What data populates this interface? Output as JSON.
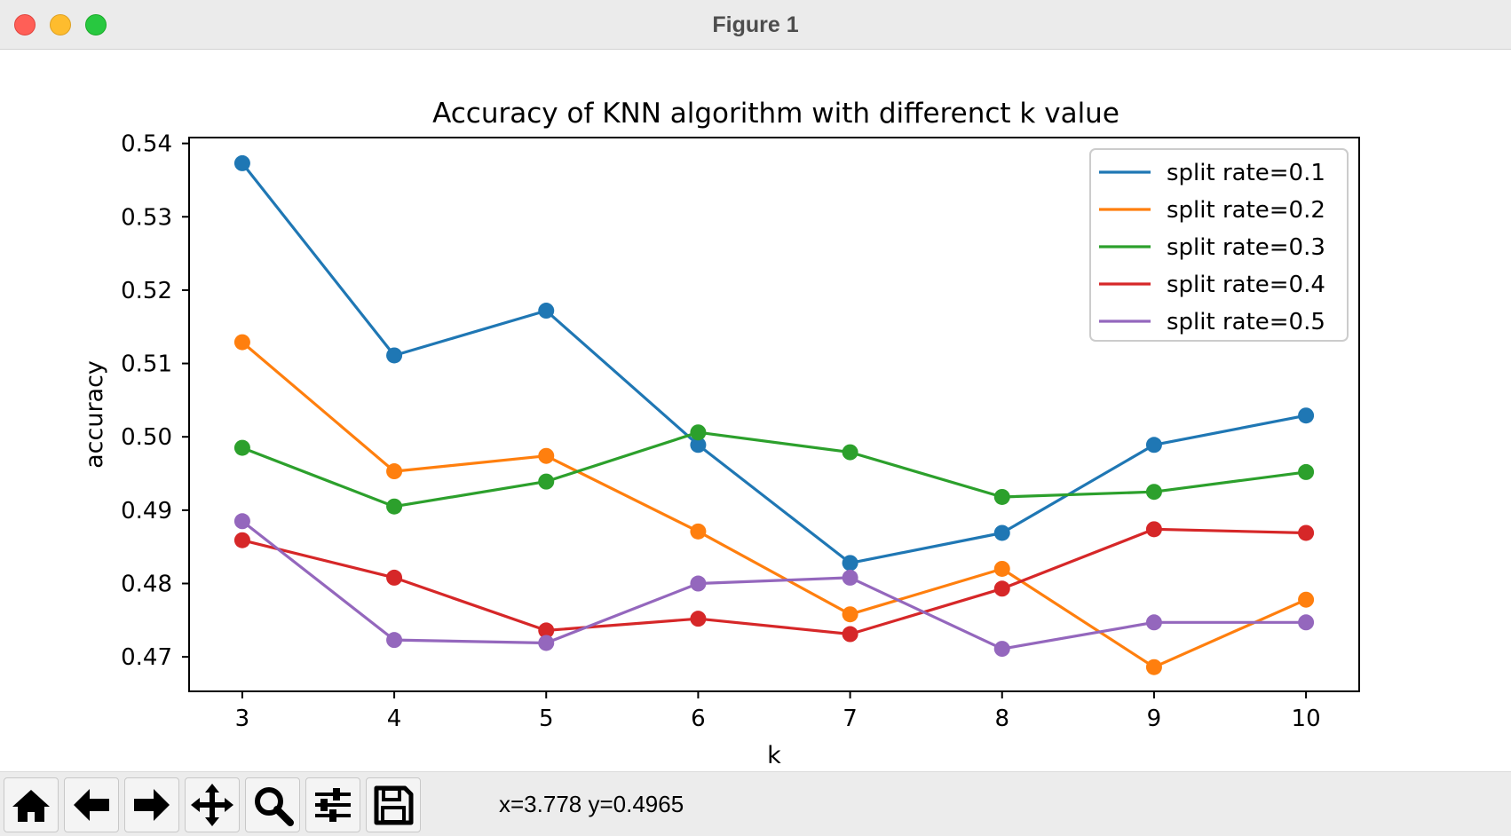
{
  "window": {
    "title": "Figure 1"
  },
  "toolbar": {
    "buttons": [
      {
        "name": "home-button",
        "icon": "home-icon"
      },
      {
        "name": "back-button",
        "icon": "arrow-left-icon"
      },
      {
        "name": "forward-button",
        "icon": "arrow-right-icon"
      },
      {
        "name": "pan-button",
        "icon": "move-icon"
      },
      {
        "name": "zoom-button",
        "icon": "magnifier-icon"
      },
      {
        "name": "configure-subplots-button",
        "icon": "sliders-icon"
      },
      {
        "name": "save-button",
        "icon": "floppy-disk-icon"
      }
    ],
    "coordinates": "x=3.778 y=0.4965"
  },
  "chart_data": {
    "type": "line",
    "title": "Accuracy of KNN algorithm with differenct k value",
    "xlabel": "k",
    "ylabel": "accuracy",
    "x": [
      3,
      4,
      5,
      6,
      7,
      8,
      9,
      10
    ],
    "xlim": [
      2.65,
      10.35
    ],
    "ylim": [
      0.4653,
      0.5408
    ],
    "xticks": [
      3,
      4,
      5,
      6,
      7,
      8,
      9,
      10
    ],
    "yticks": [
      0.47,
      0.48,
      0.49,
      0.5,
      0.51,
      0.52,
      0.53,
      0.54
    ],
    "ytick_labels": [
      "0.47",
      "0.48",
      "0.49",
      "0.50",
      "0.51",
      "0.52",
      "0.53",
      "0.54"
    ],
    "grid": false,
    "legend_position": "top-right",
    "marker": "circle",
    "series": [
      {
        "name": "split rate=0.1",
        "color": "#1f77b4",
        "values": [
          0.5373,
          0.5111,
          0.5172,
          0.4989,
          0.4828,
          0.4869,
          0.4989,
          0.5029
        ]
      },
      {
        "name": "split rate=0.2",
        "color": "#ff7f0e",
        "values": [
          0.5129,
          0.4953,
          0.4974,
          0.4871,
          0.4758,
          0.482,
          0.4686,
          0.4778
        ]
      },
      {
        "name": "split rate=0.3",
        "color": "#2ca02c",
        "values": [
          0.4985,
          0.4905,
          0.4939,
          0.5006,
          0.4979,
          0.4918,
          0.4925,
          0.4952
        ]
      },
      {
        "name": "split rate=0.4",
        "color": "#d62728",
        "values": [
          0.4859,
          0.4808,
          0.4736,
          0.4752,
          0.4731,
          0.4793,
          0.4874,
          0.4869
        ]
      },
      {
        "name": "split rate=0.5",
        "color": "#9467bd",
        "values": [
          0.4885,
          0.4723,
          0.4719,
          0.48,
          0.4808,
          0.4711,
          0.4747,
          0.4747
        ]
      }
    ]
  }
}
